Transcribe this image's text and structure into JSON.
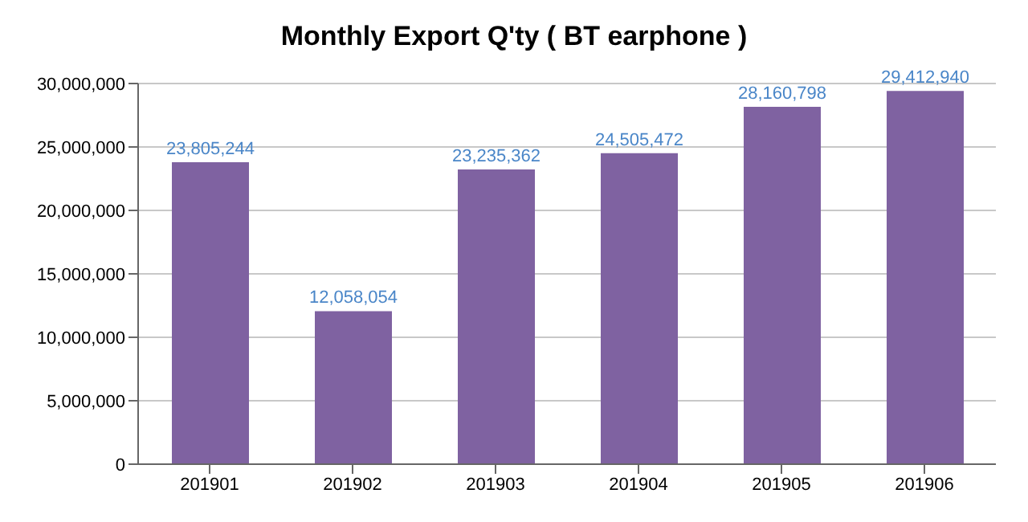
{
  "chart_data": {
    "type": "bar",
    "title": "Monthly Export Q'ty ( BT earphone )",
    "categories": [
      "201901",
      "201902",
      "201903",
      "201904",
      "201905",
      "201906"
    ],
    "values": [
      23805244,
      12058054,
      23235362,
      24505472,
      28160798,
      29412940
    ],
    "value_labels": [
      "23,805,244",
      "12,058,054",
      "23,235,362",
      "24,505,472",
      "28,160,798",
      "29,412,940"
    ],
    "color": "#7f62a1",
    "ylim": [
      0,
      30000000
    ],
    "yticks": [
      0,
      {
        "value": 5000000,
        "label": "5,000,000"
      },
      {
        "value": 10000000,
        "label": "10,000,000"
      },
      {
        "value": 15000000,
        "label": "15,000,000"
      },
      {
        "value": 20000000,
        "label": "20,000,000"
      },
      {
        "value": 25000000,
        "label": "25,000,000"
      },
      {
        "value": 30000000,
        "label": "30,000,000"
      }
    ],
    "grid": "y"
  }
}
